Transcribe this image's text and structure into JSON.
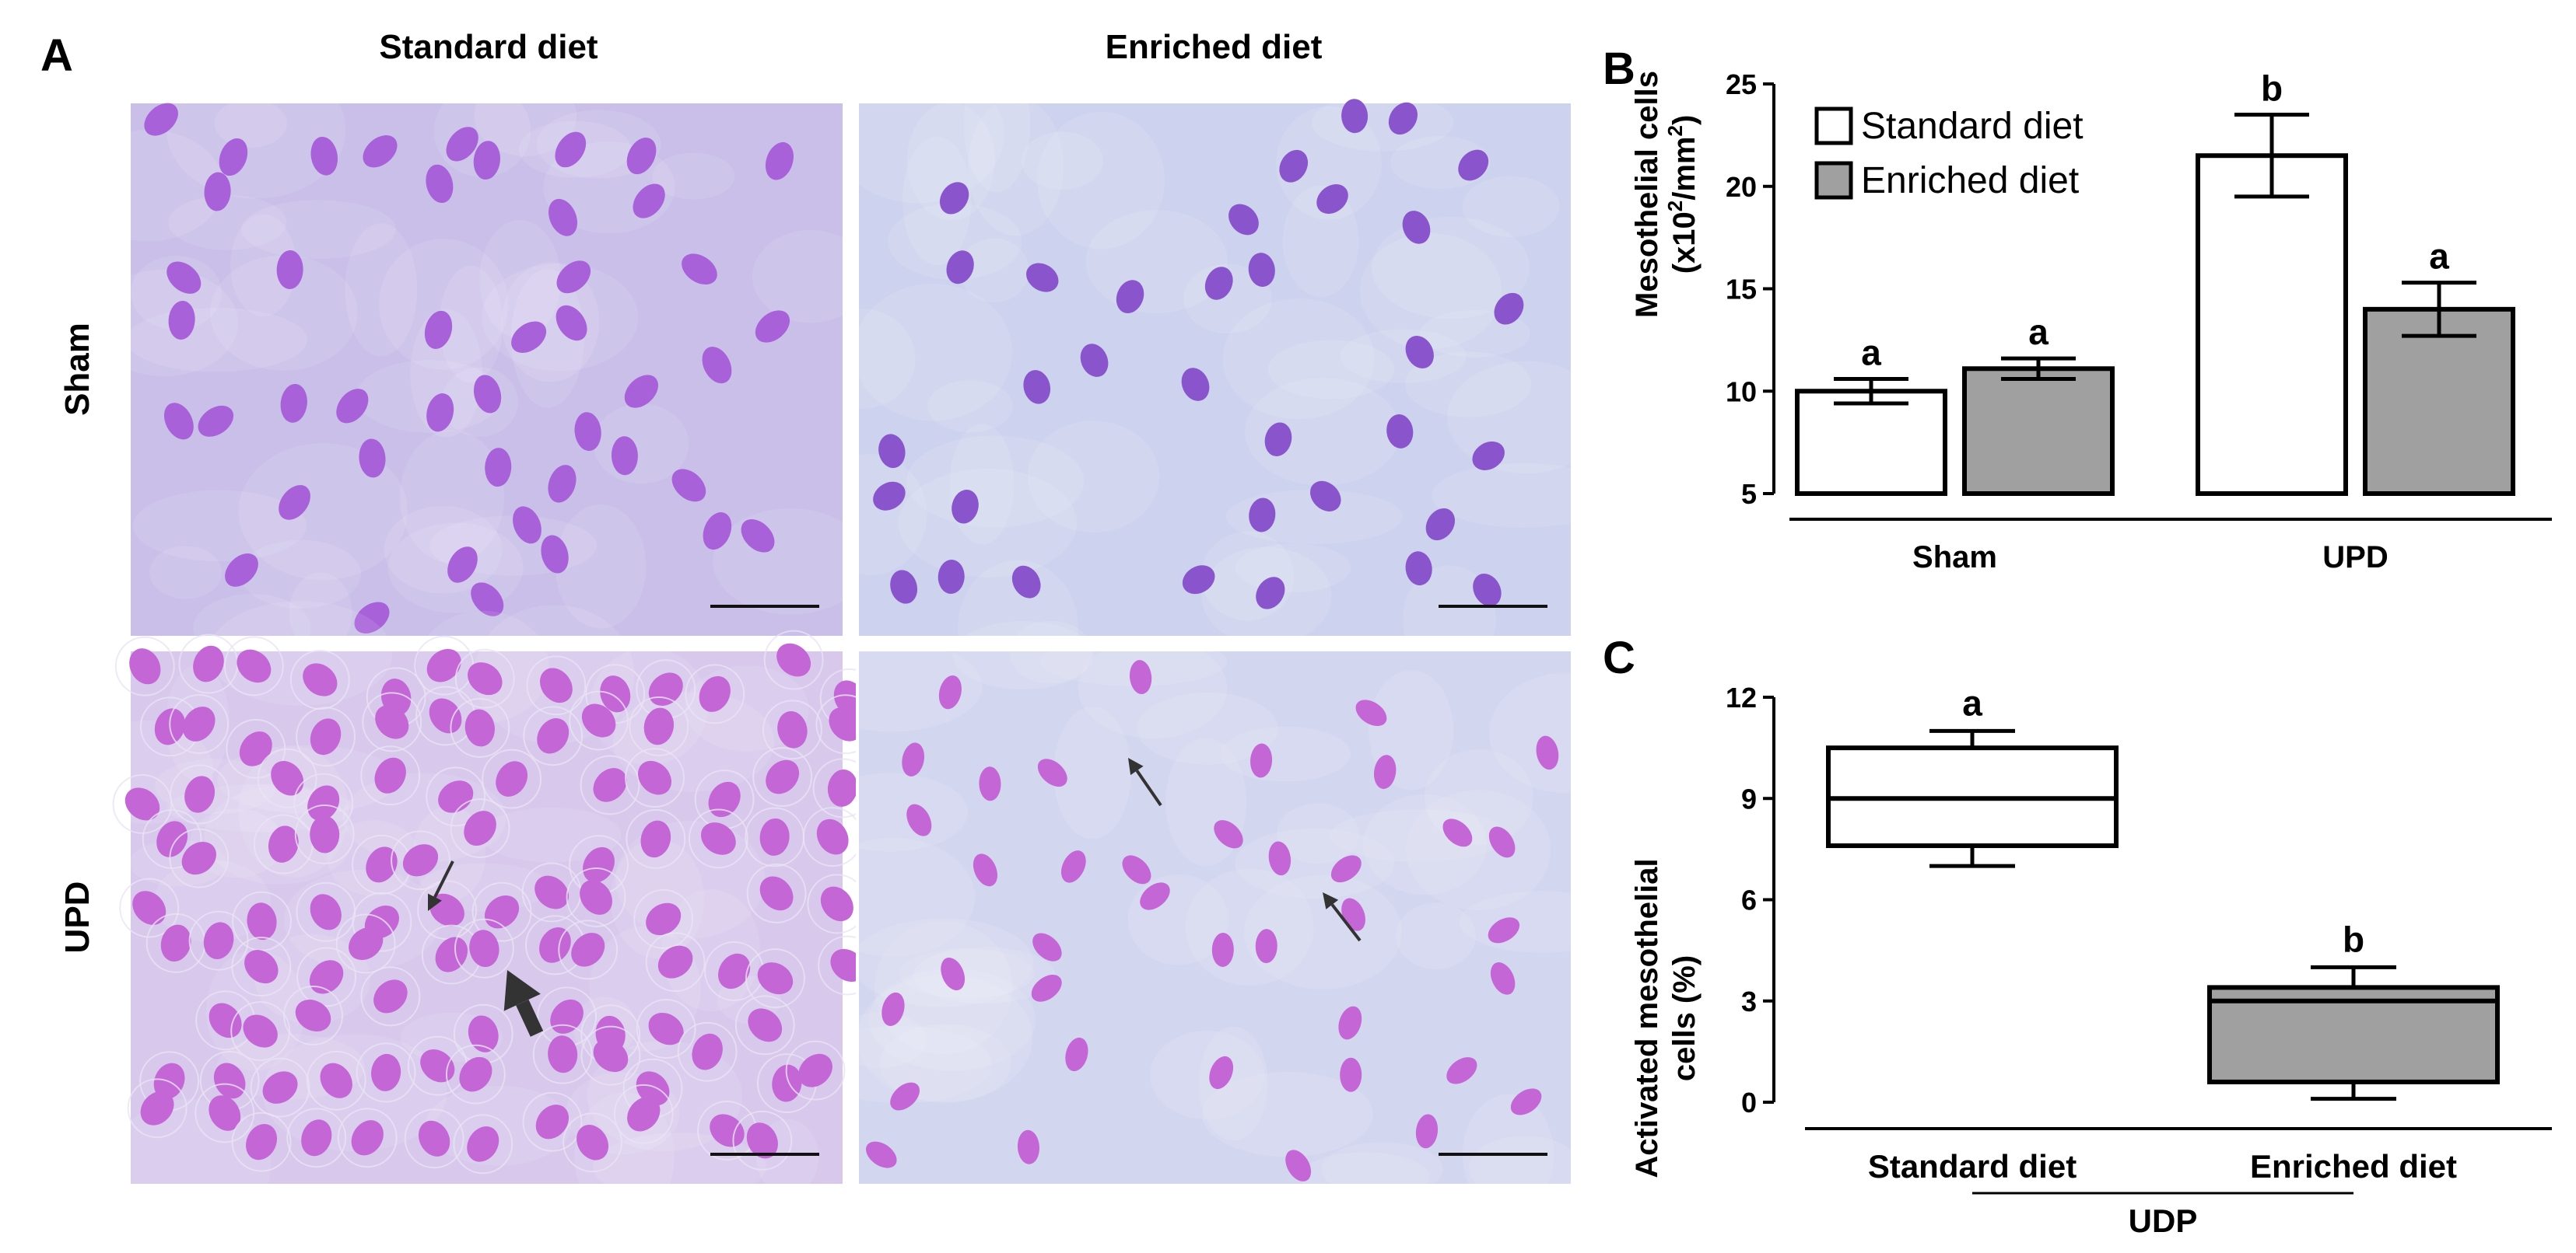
{
  "panel_A": {
    "letter": "A",
    "columns": [
      "Standard diet",
      "Enriched diet"
    ],
    "rows": [
      "Sham",
      "UPD"
    ],
    "colors": {
      "tissue_standard": "#c9bfe8",
      "tissue_enriched": "#cdd3ee",
      "nucleus_standard": "#a861d8",
      "nucleus_enriched": "#8a55cc",
      "nucleus_upd": "#c466d6"
    }
  },
  "chart_data": [
    {
      "panel": "B",
      "type": "bar",
      "ylabel_line1": "Mesothelial cells",
      "ylabel_line2_prefix": "(x10",
      "ylabel_sup1": "2",
      "ylabel_mid": "/mm",
      "ylabel_sup2": "2",
      "ylabel_suffix": ")",
      "ylim": [
        5,
        25
      ],
      "yticks": [
        "5",
        "10",
        "15",
        "20",
        "25"
      ],
      "categories": [
        "Sham",
        "UPD"
      ],
      "legend": [
        "Standard diet",
        "Enriched diet"
      ],
      "legend_position": "top-left",
      "series": [
        {
          "name": "Standard diet",
          "values": [
            10.0,
            21.5
          ],
          "errors": [
            0.6,
            2.0
          ],
          "letters": [
            "a",
            "b"
          ],
          "color": "#ffffff"
        },
        {
          "name": "Enriched diet",
          "values": [
            11.1,
            14.0
          ],
          "errors": [
            0.5,
            1.3
          ],
          "letters": [
            "a",
            "a"
          ],
          "color": "#a0a0a0"
        }
      ],
      "grid": false
    },
    {
      "panel": "C",
      "type": "box",
      "ylabel_line1": "Activated mesothelial",
      "ylabel_line2": "cells (%)",
      "ylim": [
        0,
        12
      ],
      "yticks": [
        "0",
        "3",
        "6",
        "9",
        "12"
      ],
      "categories": [
        "Standard diet",
        "Enriched diet"
      ],
      "group_label": "UDP",
      "boxes": [
        {
          "name": "Standard diet",
          "min": 7.0,
          "q1": 7.6,
          "median": 9.0,
          "q3": 10.5,
          "max": 11.0,
          "letter": "a",
          "color": "#ffffff"
        },
        {
          "name": "Enriched diet",
          "min": 0.1,
          "q1": 0.6,
          "median": 3.0,
          "q3": 3.4,
          "max": 4.0,
          "letter": "b",
          "color": "#a0a0a0"
        }
      ],
      "grid": false
    }
  ]
}
